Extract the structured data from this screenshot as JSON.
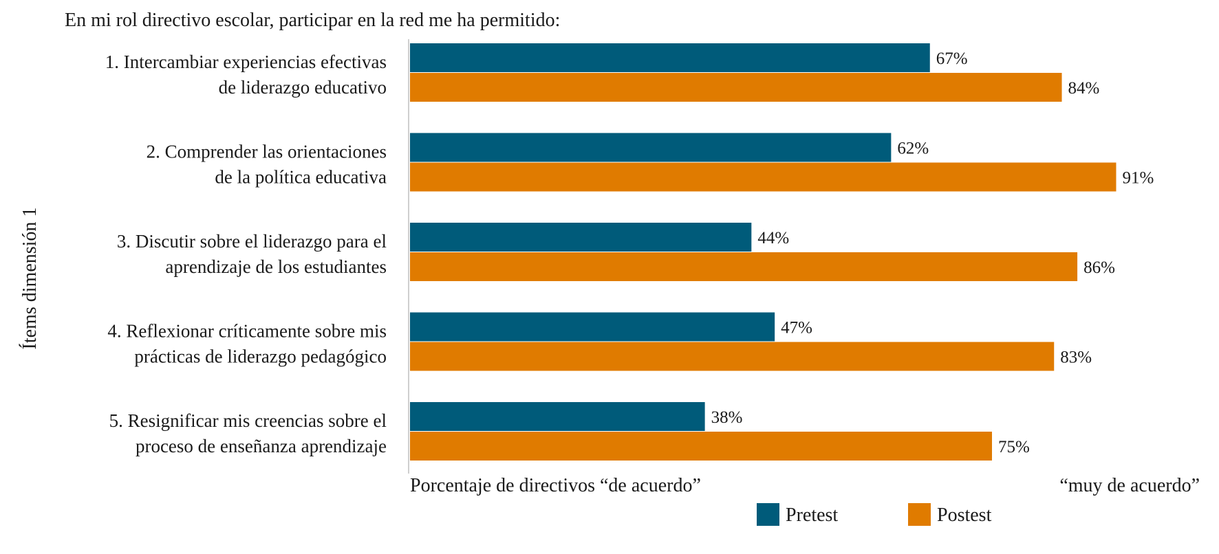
{
  "chart_data": {
    "type": "bar",
    "orientation": "horizontal",
    "title": "En mi rol directivo escolar, participar en la red me ha permitido:",
    "ylabel": "Ítems dimensión 1",
    "xlabel": "Porcentaje de directivos “de acuerdo” “muy de acuerdo”",
    "xlabel_parts": [
      "Porcentaje de directivos “de acuerdo”",
      "“muy de acuerdo”"
    ],
    "xlim": [
      0,
      100
    ],
    "grid": false,
    "categories": [
      [
        "1. Intercambiar experiencias efectivas",
        "de liderazgo educativo"
      ],
      [
        "2. Comprender las orientaciones",
        "de la política educativa"
      ],
      [
        "3. Discutir sobre el liderazgo para el",
        "aprendizaje de los estudiantes"
      ],
      [
        "4. Reflexionar críticamente sobre mis",
        "prácticas de liderazgo pedagógico"
      ],
      [
        "5. Resignificar mis creencias sobre el",
        "proceso de enseñanza aprendizaje"
      ]
    ],
    "series": [
      {
        "name": "Pretest",
        "color": "#005b7a",
        "values": [
          67,
          62,
          44,
          47,
          38
        ],
        "labels": [
          "67%",
          "62%",
          "44%",
          "47%",
          "38%"
        ]
      },
      {
        "name": "Postest",
        "color": "#e07b00",
        "values": [
          84,
          91,
          86,
          83,
          75
        ],
        "labels": [
          "84%",
          "91%",
          "86%",
          "83%",
          "75%"
        ]
      }
    ],
    "legend": {
      "placement": "bottom-right"
    }
  }
}
